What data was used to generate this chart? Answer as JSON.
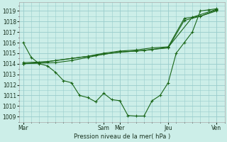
{
  "background_color": "#cceee8",
  "grid_color": "#99cccc",
  "line_color": "#1a6618",
  "ylabel": "Pression niveau de la mer( hPa )",
  "ylim": [
    1008.5,
    1019.8
  ],
  "yticks": [
    1009,
    1010,
    1011,
    1012,
    1013,
    1014,
    1015,
    1016,
    1017,
    1018,
    1019
  ],
  "xtick_labels": [
    "Mar",
    "Sam",
    "Mer",
    "Jeu",
    "Ven"
  ],
  "xtick_positions": [
    0,
    10,
    12,
    18,
    24
  ],
  "xlim": [
    -0.5,
    25
  ],
  "line1_x": [
    0,
    1,
    2,
    3,
    4,
    5,
    6,
    7,
    8,
    9,
    10,
    11,
    12,
    13,
    14,
    15,
    16,
    17,
    18,
    19,
    20,
    21,
    22,
    23,
    24
  ],
  "line1_y": [
    1016.0,
    1014.6,
    1014.0,
    1013.8,
    1013.2,
    1012.4,
    1012.2,
    1011.0,
    1010.8,
    1010.4,
    1011.2,
    1010.6,
    1010.5,
    1009.1,
    1009.05,
    1009.05,
    1010.5,
    1011.0,
    1012.2,
    1015.0,
    1016.0,
    1017.0,
    1019.0,
    1019.1,
    1019.2
  ],
  "line2_x": [
    0,
    2,
    4,
    6,
    8,
    10,
    12,
    14,
    16,
    18,
    20,
    22,
    24
  ],
  "line2_y": [
    1014.0,
    1014.05,
    1014.1,
    1014.3,
    1014.6,
    1014.9,
    1015.1,
    1015.2,
    1015.35,
    1015.5,
    1018.1,
    1018.5,
    1019.0
  ],
  "line3_x": [
    0,
    2,
    4,
    6,
    8,
    10,
    12,
    14,
    16,
    18,
    20,
    22,
    24
  ],
  "line3_y": [
    1014.0,
    1014.1,
    1014.3,
    1014.5,
    1014.7,
    1015.0,
    1015.2,
    1015.3,
    1015.5,
    1015.6,
    1018.3,
    1018.5,
    1019.1
  ],
  "line4_x": [
    0,
    3,
    6,
    9,
    12,
    15,
    18,
    21,
    24
  ],
  "line4_y": [
    1014.1,
    1014.2,
    1014.5,
    1014.8,
    1015.1,
    1015.25,
    1015.55,
    1018.4,
    1019.15
  ]
}
